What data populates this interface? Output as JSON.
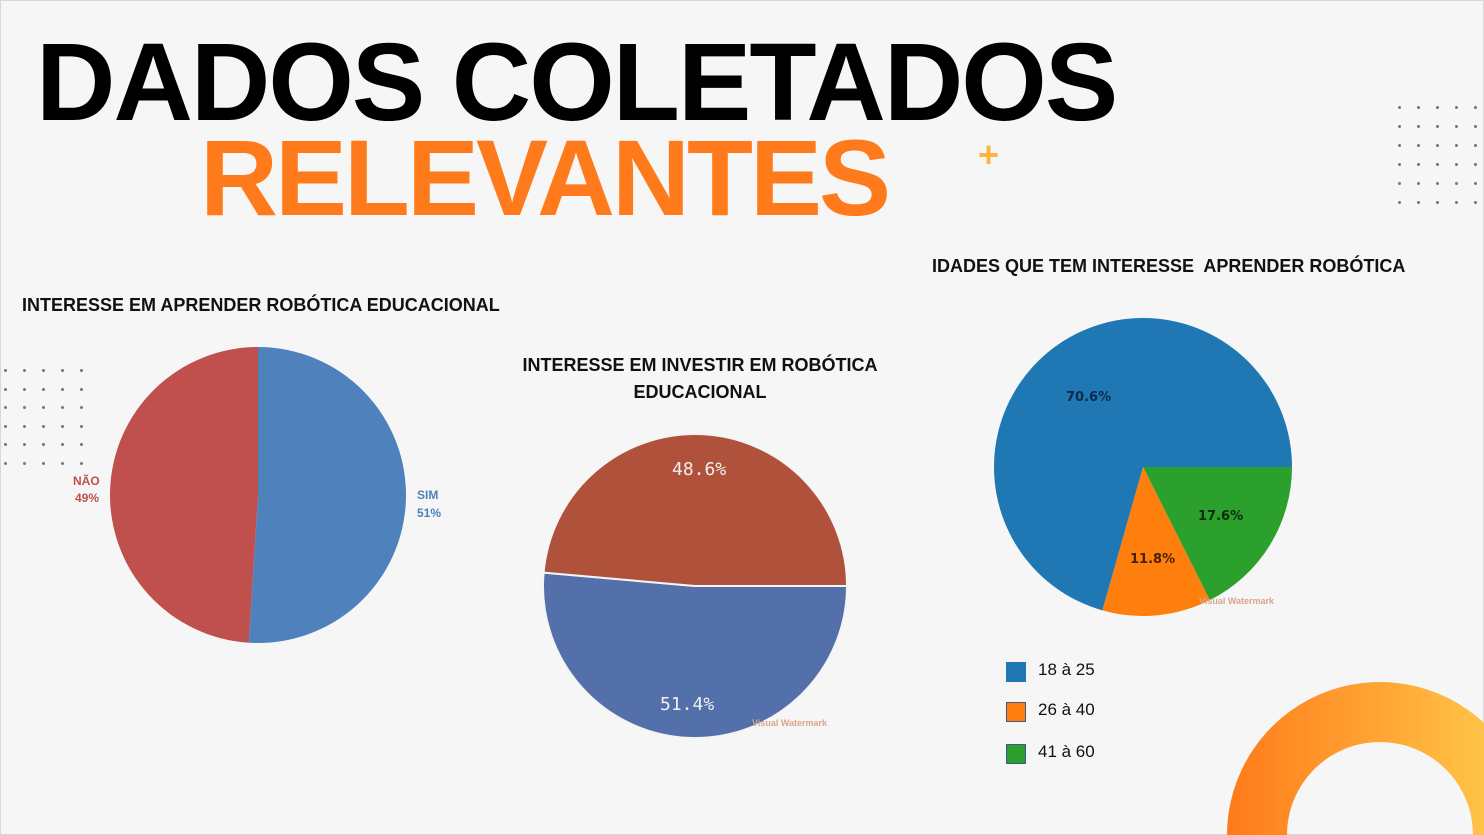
{
  "title": {
    "line1": "DADOS COLETADOS",
    "line2": "RELEVANTES",
    "plus": "+"
  },
  "colors": {
    "accent": "#ff7a1a",
    "accent_light": "#ffb43a"
  },
  "chart_data": [
    {
      "type": "pie",
      "title": "INTERESSE EM APRENDER ROBÓTICA EDUCACIONAL",
      "categories": [
        "SIM",
        "NÃO"
      ],
      "values": [
        51,
        49
      ],
      "labels": [
        "51%",
        "49%"
      ],
      "colors": [
        "#4f81bd",
        "#c0504d"
      ]
    },
    {
      "type": "pie",
      "title": "INTERESSE EM INVESTIR EM ROBÓTICA EDUCACIONAL",
      "values": [
        51.4,
        48.6
      ],
      "labels": [
        "51.4%",
        "48.6%"
      ],
      "colors": [
        "#5470aa",
        "#b0523b"
      ],
      "watermark": "Visual Watermark"
    },
    {
      "type": "pie",
      "title": "IDADES QUE TEM INTERESSE  APRENDER ROBÓTICA",
      "categories": [
        "18 à 25",
        "26 à 40",
        "41 à 60"
      ],
      "values": [
        70.6,
        11.8,
        17.6
      ],
      "labels": [
        "70.6%",
        "11.8%",
        "17.6%"
      ],
      "colors": [
        "#1f77b4",
        "#ff7f0e",
        "#2ca02c"
      ],
      "legend": "bottom-left",
      "watermark": "Visual Watermark"
    }
  ]
}
